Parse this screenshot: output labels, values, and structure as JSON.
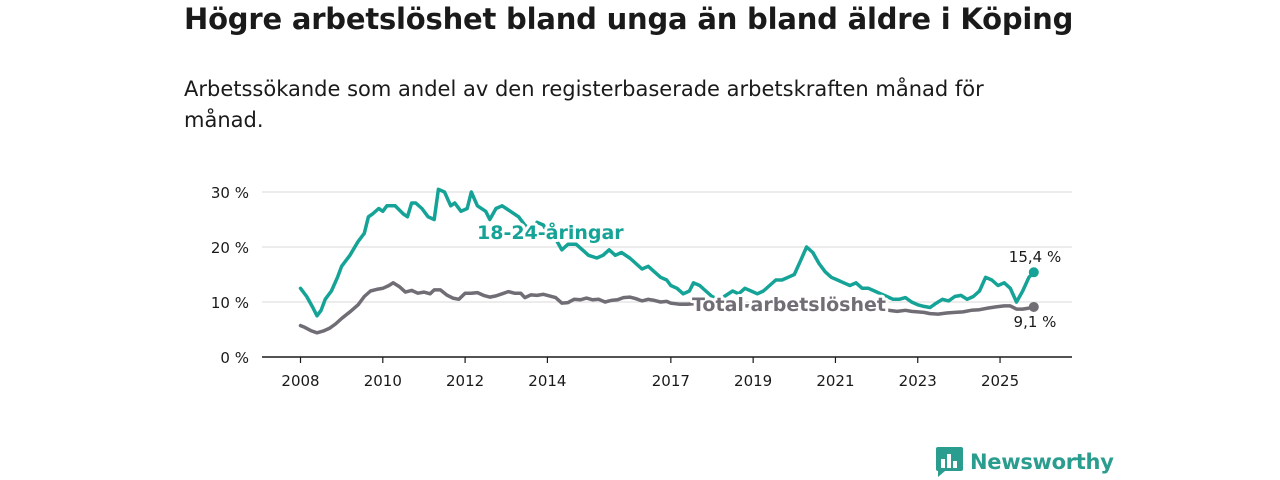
{
  "title": "Högre arbetslöshet bland unga än bland äldre i Köping",
  "subtitle": "Arbetssökande som andel av den registerbaserade arbetskraften månad för månad.",
  "brand": {
    "name": "Newsworthy",
    "icon": "newsworthy-bar-chart-icon",
    "color": "#2a9d8f"
  },
  "chart_data": {
    "type": "line",
    "ylim": [
      0,
      32
    ],
    "xlim": [
      2008,
      2026.5
    ],
    "yticks": [
      0,
      10,
      20,
      30
    ],
    "ytick_labels": [
      "0 %",
      "10 %",
      "20 %",
      "30 %"
    ],
    "xticks": [
      2008,
      2010,
      2012,
      2014,
      2017,
      2019,
      2021,
      2023,
      2025
    ],
    "xtick_labels": [
      "2008",
      "2010",
      "2012",
      "2014",
      "2017",
      "2019",
      "2021",
      "2023",
      "2025"
    ],
    "grid": "horizontal",
    "series": [
      {
        "name": "18-24-åringar",
        "color": "#14a396",
        "end_label": "15,4 %",
        "points": [
          [
            2008.0,
            12.5
          ],
          [
            2008.15,
            11.0
          ],
          [
            2008.3,
            9.0
          ],
          [
            2008.4,
            7.5
          ],
          [
            2008.5,
            8.5
          ],
          [
            2008.6,
            10.5
          ],
          [
            2008.75,
            12.0
          ],
          [
            2008.9,
            14.5
          ],
          [
            2009.0,
            16.5
          ],
          [
            2009.2,
            18.5
          ],
          [
            2009.4,
            21.0
          ],
          [
            2009.55,
            22.5
          ],
          [
            2009.65,
            25.5
          ],
          [
            2009.75,
            26.0
          ],
          [
            2009.9,
            27.0
          ],
          [
            2010.0,
            26.5
          ],
          [
            2010.1,
            27.5
          ],
          [
            2010.3,
            27.5
          ],
          [
            2010.5,
            26.0
          ],
          [
            2010.6,
            25.5
          ],
          [
            2010.7,
            28.0
          ],
          [
            2010.8,
            28.0
          ],
          [
            2010.95,
            27.0
          ],
          [
            2011.1,
            25.5
          ],
          [
            2011.25,
            25.0
          ],
          [
            2011.35,
            30.5
          ],
          [
            2011.5,
            30.0
          ],
          [
            2011.65,
            27.5
          ],
          [
            2011.75,
            28.0
          ],
          [
            2011.9,
            26.5
          ],
          [
            2012.05,
            27.0
          ],
          [
            2012.15,
            30.0
          ],
          [
            2012.3,
            27.5
          ],
          [
            2012.5,
            26.5
          ],
          [
            2012.6,
            25.0
          ],
          [
            2012.75,
            27.0
          ],
          [
            2012.9,
            27.5
          ],
          [
            2013.1,
            26.5
          ],
          [
            2013.3,
            25.5
          ],
          [
            2013.45,
            24.0
          ],
          [
            2013.6,
            23.0
          ],
          [
            2013.75,
            24.5
          ],
          [
            2013.9,
            24.0
          ],
          [
            2014.05,
            22.0
          ],
          [
            2014.2,
            21.5
          ],
          [
            2014.35,
            19.5
          ],
          [
            2014.5,
            20.5
          ],
          [
            2014.7,
            20.5
          ],
          [
            2014.85,
            19.5
          ],
          [
            2015.0,
            18.5
          ],
          [
            2015.2,
            18.0
          ],
          [
            2015.35,
            18.5
          ],
          [
            2015.5,
            19.5
          ],
          [
            2015.65,
            18.5
          ],
          [
            2015.8,
            19.0
          ],
          [
            2016.0,
            18.0
          ],
          [
            2016.15,
            17.0
          ],
          [
            2016.3,
            16.0
          ],
          [
            2016.45,
            16.5
          ],
          [
            2016.6,
            15.5
          ],
          [
            2016.75,
            14.5
          ],
          [
            2016.9,
            14.0
          ],
          [
            2017.0,
            13.0
          ],
          [
            2017.15,
            12.5
          ],
          [
            2017.3,
            11.5
          ],
          [
            2017.45,
            12.0
          ],
          [
            2017.55,
            13.5
          ],
          [
            2017.7,
            13.0
          ],
          [
            2017.85,
            12.0
          ],
          [
            2018.0,
            11.0
          ],
          [
            2018.15,
            10.5
          ],
          [
            2018.3,
            11.0
          ],
          [
            2018.5,
            12.0
          ],
          [
            2018.65,
            11.5
          ],
          [
            2018.8,
            12.5
          ],
          [
            2018.95,
            12.0
          ],
          [
            2019.1,
            11.5
          ],
          [
            2019.25,
            12.0
          ],
          [
            2019.4,
            13.0
          ],
          [
            2019.55,
            14.0
          ],
          [
            2019.7,
            14.0
          ],
          [
            2019.85,
            14.5
          ],
          [
            2020.0,
            15.0
          ],
          [
            2020.15,
            17.5
          ],
          [
            2020.3,
            20.0
          ],
          [
            2020.45,
            19.0
          ],
          [
            2020.6,
            17.0
          ],
          [
            2020.75,
            15.5
          ],
          [
            2020.9,
            14.5
          ],
          [
            2021.05,
            14.0
          ],
          [
            2021.2,
            13.5
          ],
          [
            2021.35,
            13.0
          ],
          [
            2021.5,
            13.5
          ],
          [
            2021.65,
            12.5
          ],
          [
            2021.8,
            12.5
          ],
          [
            2021.95,
            12.0
          ],
          [
            2022.1,
            11.5
          ],
          [
            2022.25,
            11.0
          ],
          [
            2022.4,
            10.5
          ],
          [
            2022.55,
            10.5
          ],
          [
            2022.7,
            10.8
          ],
          [
            2022.85,
            10.0
          ],
          [
            2023.0,
            9.5
          ],
          [
            2023.15,
            9.2
          ],
          [
            2023.3,
            9.0
          ],
          [
            2023.45,
            9.8
          ],
          [
            2023.6,
            10.5
          ],
          [
            2023.75,
            10.2
          ],
          [
            2023.9,
            11.0
          ],
          [
            2024.05,
            11.2
          ],
          [
            2024.2,
            10.5
          ],
          [
            2024.35,
            11.0
          ],
          [
            2024.5,
            12.0
          ],
          [
            2024.65,
            14.5
          ],
          [
            2024.8,
            14.0
          ],
          [
            2024.95,
            13.0
          ],
          [
            2025.1,
            13.5
          ],
          [
            2025.25,
            12.5
          ],
          [
            2025.4,
            10.0
          ],
          [
            2025.55,
            12.0
          ],
          [
            2025.7,
            14.5
          ],
          [
            2025.82,
            15.4
          ]
        ]
      },
      {
        "name": "Total arbetslöshet",
        "color": "#706d75",
        "end_label": "9,1 %",
        "points": [
          [
            2008.0,
            5.7
          ],
          [
            2008.1,
            5.4
          ],
          [
            2008.25,
            4.8
          ],
          [
            2008.4,
            4.4
          ],
          [
            2008.55,
            4.7
          ],
          [
            2008.7,
            5.2
          ],
          [
            2008.85,
            6.0
          ],
          [
            2009.0,
            7.0
          ],
          [
            2009.2,
            8.2
          ],
          [
            2009.4,
            9.5
          ],
          [
            2009.55,
            11.0
          ],
          [
            2009.7,
            12.0
          ],
          [
            2009.85,
            12.3
          ],
          [
            2010.0,
            12.5
          ],
          [
            2010.15,
            13.0
          ],
          [
            2010.25,
            13.5
          ],
          [
            2010.4,
            12.8
          ],
          [
            2010.55,
            11.8
          ],
          [
            2010.7,
            12.1
          ],
          [
            2010.85,
            11.6
          ],
          [
            2011.0,
            11.8
          ],
          [
            2011.15,
            11.5
          ],
          [
            2011.25,
            12.2
          ],
          [
            2011.4,
            12.2
          ],
          [
            2011.55,
            11.3
          ],
          [
            2011.7,
            10.7
          ],
          [
            2011.85,
            10.5
          ],
          [
            2012.0,
            11.6
          ],
          [
            2012.15,
            11.6
          ],
          [
            2012.3,
            11.7
          ],
          [
            2012.45,
            11.2
          ],
          [
            2012.6,
            10.9
          ],
          [
            2012.75,
            11.1
          ],
          [
            2012.9,
            11.5
          ],
          [
            2013.05,
            11.9
          ],
          [
            2013.2,
            11.6
          ],
          [
            2013.35,
            11.6
          ],
          [
            2013.45,
            10.8
          ],
          [
            2013.6,
            11.3
          ],
          [
            2013.75,
            11.2
          ],
          [
            2013.9,
            11.4
          ],
          [
            2014.05,
            11.1
          ],
          [
            2014.2,
            10.8
          ],
          [
            2014.35,
            9.8
          ],
          [
            2014.5,
            9.9
          ],
          [
            2014.65,
            10.5
          ],
          [
            2014.8,
            10.4
          ],
          [
            2014.95,
            10.7
          ],
          [
            2015.1,
            10.4
          ],
          [
            2015.25,
            10.5
          ],
          [
            2015.4,
            10.0
          ],
          [
            2015.55,
            10.3
          ],
          [
            2015.7,
            10.4
          ],
          [
            2015.85,
            10.8
          ],
          [
            2016.0,
            10.9
          ],
          [
            2016.15,
            10.6
          ],
          [
            2016.3,
            10.2
          ],
          [
            2016.45,
            10.5
          ],
          [
            2016.6,
            10.3
          ],
          [
            2016.75,
            10.0
          ],
          [
            2016.9,
            10.1
          ],
          [
            2017.0,
            9.8
          ],
          [
            2017.2,
            9.6
          ],
          [
            2017.4,
            9.6
          ],
          [
            2017.6,
            9.7
          ],
          [
            2017.8,
            9.6
          ],
          [
            2018.0,
            9.5
          ],
          [
            2018.2,
            9.5
          ],
          [
            2018.4,
            9.4
          ],
          [
            2018.6,
            9.4
          ],
          [
            2018.8,
            9.3
          ],
          [
            2019.0,
            9.3
          ],
          [
            2019.2,
            9.2
          ],
          [
            2019.4,
            9.3
          ],
          [
            2019.6,
            9.3
          ],
          [
            2019.8,
            9.3
          ],
          [
            2020.0,
            9.4
          ],
          [
            2020.2,
            9.6
          ],
          [
            2020.4,
            9.8
          ],
          [
            2020.6,
            9.6
          ],
          [
            2020.8,
            9.4
          ],
          [
            2021.0,
            9.2
          ],
          [
            2021.2,
            9.1
          ],
          [
            2021.4,
            9.0
          ],
          [
            2021.6,
            8.9
          ],
          [
            2021.8,
            8.8
          ],
          [
            2022.0,
            8.7
          ],
          [
            2022.1,
            8.6
          ],
          [
            2022.3,
            8.5
          ],
          [
            2022.5,
            8.3
          ],
          [
            2022.7,
            8.5
          ],
          [
            2022.85,
            8.3
          ],
          [
            2023.0,
            8.2
          ],
          [
            2023.15,
            8.1
          ],
          [
            2023.3,
            7.9
          ],
          [
            2023.5,
            7.8
          ],
          [
            2023.7,
            8.0
          ],
          [
            2023.9,
            8.1
          ],
          [
            2024.1,
            8.2
          ],
          [
            2024.3,
            8.5
          ],
          [
            2024.5,
            8.6
          ],
          [
            2024.7,
            8.9
          ],
          [
            2024.9,
            9.1
          ],
          [
            2025.1,
            9.3
          ],
          [
            2025.25,
            9.3
          ],
          [
            2025.4,
            8.7
          ],
          [
            2025.55,
            8.7
          ],
          [
            2025.7,
            8.9
          ],
          [
            2025.82,
            9.1
          ]
        ]
      }
    ]
  }
}
